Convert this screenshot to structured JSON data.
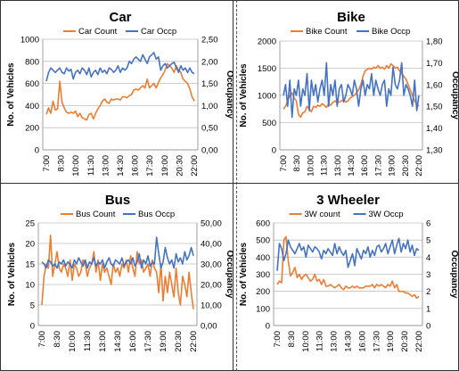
{
  "colors": {
    "count": "#ED7D31",
    "occupancy": "#4472C4",
    "grid": "#bfbfbf",
    "text": "#000000"
  },
  "chart_data": [
    {
      "type": "line",
      "title": "Car",
      "ylabel": "No. of Vehicles",
      "y2label": "Occupancy",
      "ylim": [
        0,
        1000
      ],
      "y2lim": [
        0.0,
        2.5
      ],
      "yticks": [
        "0",
        "200",
        "400",
        "600",
        "800",
        "1000"
      ],
      "y2ticks": [
        "0,00",
        "0,50",
        "1,00",
        "1,50",
        "2,00",
        "2,50"
      ],
      "grid": true,
      "legend": "top",
      "x_tick_labels": [
        "7:00",
        "8:30",
        "10:00",
        "11:30",
        "13:00",
        "14:30",
        "16:00",
        "17:30",
        "19:00",
        "20:30",
        "22:00"
      ],
      "series": [
        {
          "name": "Car Count",
          "axis": "left",
          "values": [
            320,
            380,
            330,
            440,
            360,
            370,
            620,
            430,
            380,
            340,
            330,
            340,
            330,
            350,
            300,
            330,
            290,
            280,
            270,
            320,
            330,
            280,
            330,
            370,
            400,
            440,
            460,
            430,
            420,
            460,
            450,
            460,
            460,
            450,
            480,
            480,
            470,
            490,
            500,
            540,
            550,
            540,
            560,
            580,
            560,
            640,
            560,
            580,
            600,
            560,
            610,
            650,
            680,
            720,
            780,
            760,
            740,
            700,
            760,
            720,
            700,
            640,
            620,
            600,
            550,
            480,
            440
          ]
        },
        {
          "name": "Car Occp",
          "axis": "right",
          "values": [
            1.55,
            1.75,
            1.85,
            1.8,
            1.75,
            1.8,
            1.85,
            1.75,
            1.72,
            1.85,
            1.78,
            1.82,
            1.6,
            1.75,
            1.8,
            1.72,
            1.85,
            1.8,
            1.7,
            1.85,
            1.65,
            1.75,
            1.8,
            1.7,
            1.85,
            1.75,
            1.8,
            1.72,
            1.85,
            1.82,
            1.75,
            1.8,
            1.9,
            1.75,
            1.85,
            1.8,
            1.85,
            2.0,
            1.95,
            2.05,
            2.1,
            2.05,
            2.0,
            2.15,
            2.05,
            1.95,
            2.1,
            2.15,
            2.2,
            2.05,
            2.1,
            1.8,
            1.9,
            1.95,
            1.85,
            1.9,
            1.95,
            1.98,
            1.85,
            1.75,
            1.9,
            1.8,
            1.85,
            1.75,
            1.85,
            1.75,
            1.72
          ]
        }
      ]
    },
    {
      "type": "line",
      "title": "Bike",
      "ylabel": "No. of Vehicles",
      "y2label": "Occupancy",
      "ylim": [
        0,
        2000
      ],
      "y2lim": [
        1.3,
        1.8
      ],
      "yticks": [
        "0",
        "500",
        "1000",
        "1500",
        "2000"
      ],
      "y2ticks": [
        "1,30",
        "1,40",
        "1,50",
        "1,60",
        "1,70",
        "1,80"
      ],
      "grid": true,
      "legend": "top",
      "x_tick_labels": [
        "7:00",
        "8:30",
        "10:00",
        "11:30",
        "13:00",
        "14:30",
        "16:00",
        "17:30",
        "19:00",
        "20:30",
        "22:00"
      ],
      "series": [
        {
          "name": "Bike Count",
          "axis": "left",
          "values": [
            750,
            800,
            900,
            1000,
            1050,
            950,
            900,
            650,
            600,
            680,
            700,
            800,
            750,
            700,
            800,
            780,
            820,
            800,
            850,
            820,
            780,
            850,
            820,
            870,
            900,
            860,
            880,
            900,
            920,
            880,
            900,
            950,
            980,
            1000,
            1050,
            1100,
            1200,
            1350,
            1450,
            1480,
            1500,
            1480,
            1520,
            1500,
            1550,
            1500,
            1520,
            1480,
            1550,
            1500,
            1580,
            1550,
            1500,
            1520,
            1450,
            1400,
            1350,
            1300,
            1200,
            1100,
            1000,
            900,
            850,
            800
          ]
        },
        {
          "name": "Bike Occp",
          "axis": "right",
          "values": [
            1.55,
            1.6,
            1.5,
            1.62,
            1.45,
            1.58,
            1.55,
            1.62,
            1.5,
            1.58,
            1.55,
            1.65,
            1.48,
            1.62,
            1.55,
            1.6,
            1.52,
            1.58,
            1.62,
            1.55,
            1.7,
            1.5,
            1.6,
            1.55,
            1.62,
            1.5,
            1.58,
            1.6,
            1.52,
            1.55,
            1.6,
            1.58,
            1.55,
            1.62,
            1.58,
            1.5,
            1.58,
            1.62,
            1.55,
            1.6,
            1.58,
            1.65,
            1.55,
            1.62,
            1.58,
            1.55,
            1.6,
            1.62,
            1.5,
            1.58,
            1.55,
            1.68,
            1.6,
            1.58,
            1.62,
            1.7,
            1.55,
            1.6,
            1.58,
            1.55,
            1.5,
            1.62,
            1.48,
            1.55
          ]
        }
      ]
    },
    {
      "type": "line",
      "title": "Bus",
      "ylabel": "No. of Vehicles",
      "y2label": "Occupancy",
      "ylim": [
        0,
        25
      ],
      "y2lim": [
        0.0,
        50.0
      ],
      "yticks": [
        "0",
        "5",
        "10",
        "15",
        "20",
        "25"
      ],
      "y2ticks": [
        "0,00",
        "10,00",
        "20,00",
        "30,00",
        "40,00",
        "50,00"
      ],
      "grid": true,
      "legend": "top",
      "x_tick_labels": [
        "7:00",
        "8:30",
        "10:00",
        "11:30",
        "13:00",
        "14:30",
        "16:00",
        "17:30",
        "19:00",
        "20:30",
        "22:00"
      ],
      "series": [
        {
          "name": "Bus Count",
          "axis": "left",
          "values": [
            5,
            12,
            15,
            14,
            22,
            12,
            15,
            18,
            14,
            13,
            15,
            14,
            12,
            16,
            11,
            15,
            14,
            12,
            13,
            16,
            15,
            12,
            14,
            15,
            18,
            13,
            16,
            11,
            15,
            13,
            14,
            12,
            10,
            15,
            13,
            14,
            12,
            15,
            14,
            16,
            13,
            17,
            14,
            12,
            18,
            15,
            16,
            13,
            14,
            15,
            12,
            16,
            14,
            13,
            8,
            15,
            6,
            12,
            8,
            13,
            10,
            7,
            14,
            8,
            5,
            12,
            10,
            7,
            13,
            8,
            4
          ]
        },
        {
          "name": "Bus Occp",
          "axis": "right",
          "values": [
            31,
            30,
            28,
            32,
            31,
            29,
            30,
            28,
            31,
            30,
            32,
            29,
            31,
            30,
            28,
            32,
            30,
            33,
            31,
            29,
            32,
            28,
            31,
            30,
            33,
            29,
            31,
            30,
            32,
            28,
            31,
            33,
            30,
            29,
            32,
            31,
            30,
            33,
            29,
            31,
            32,
            30,
            33,
            29,
            31,
            35,
            28,
            32,
            30,
            34,
            29,
            31,
            30,
            43,
            35,
            28,
            31,
            38,
            33,
            30,
            32,
            28,
            35,
            31,
            33,
            30,
            36,
            32,
            34,
            38,
            34
          ]
        }
      ]
    },
    {
      "type": "line",
      "title": "3 Wheeler",
      "ylabel": "No. of Vehicles",
      "y2label": "Occupancy",
      "ylim": [
        0,
        600
      ],
      "y2lim": [
        0,
        6
      ],
      "yticks": [
        "0",
        "100",
        "200",
        "300",
        "400",
        "500",
        "600"
      ],
      "y2ticks": [
        "0",
        "1",
        "2",
        "3",
        "4",
        "5",
        "6"
      ],
      "grid": true,
      "legend": "top",
      "x_tick_labels": [
        "7:00",
        "8:30",
        "10:00",
        "11:30",
        "13:00",
        "14:30",
        "16:00",
        "17:30",
        "19:00",
        "20:30",
        "22:00"
      ],
      "series": [
        {
          "name": "3W count",
          "axis": "left",
          "values": [
            240,
            260,
            250,
            500,
            520,
            380,
            290,
            310,
            340,
            280,
            300,
            270,
            290,
            300,
            280,
            260,
            270,
            300,
            260,
            270,
            240,
            270,
            230,
            230,
            240,
            230,
            220,
            230,
            240,
            220,
            210,
            230,
            220,
            220,
            230,
            220,
            230,
            220,
            220,
            220,
            230,
            230,
            230,
            240,
            220,
            240,
            230,
            240,
            230,
            220,
            240,
            230,
            260,
            220,
            240,
            200,
            200,
            200,
            190,
            190,
            180,
            170,
            180,
            160,
            170
          ]
        },
        {
          "name": "3W Occp",
          "axis": "right",
          "values": [
            3.2,
            4.8,
            4.5,
            3.8,
            4.2,
            5.0,
            4.6,
            4.4,
            4.2,
            4.5,
            4.8,
            4.4,
            4.6,
            4.0,
            4.7,
            4.5,
            4.3,
            4.6,
            4.5,
            4.3,
            3.9,
            4.4,
            4.2,
            4.5,
            4.3,
            4.1,
            4.8,
            4.2,
            4.6,
            4.3,
            4.1,
            4.4,
            3.4,
            3.8,
            4.2,
            3.5,
            4.5,
            4.2,
            3.9,
            4.4,
            4.2,
            4.6,
            4.0,
            4.4,
            4.1,
            4.6,
            4.7,
            4.3,
            4.5,
            4.8,
            4.2,
            4.6,
            5.0,
            4.2,
            4.7,
            5.1,
            4.3,
            4.8,
            4.5,
            5.0,
            4.3,
            4.7,
            4.1,
            4.5,
            4.4
          ]
        }
      ]
    }
  ]
}
